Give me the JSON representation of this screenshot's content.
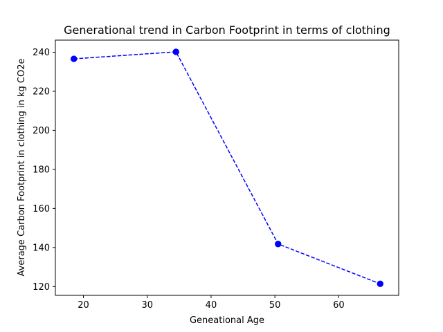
{
  "chart_data": {
    "type": "line",
    "title": "Generational trend in Carbon Footprint in terms of clothing",
    "xlabel": "Geneational Age",
    "ylabel": "Average Carbon Footprint in clothing in kg CO2e",
    "xlim": [
      15.6,
      69.4
    ],
    "ylim": [
      115.5,
      246.2
    ],
    "x_ticks": [
      20,
      30,
      40,
      50,
      60
    ],
    "y_ticks": [
      120,
      140,
      160,
      180,
      200,
      220,
      240
    ],
    "grid": false,
    "series": [
      {
        "x": [
          18.5,
          34.5,
          50.5,
          66.5
        ],
        "y": [
          236.6,
          240.2,
          141.8,
          121.4
        ],
        "color": "#0000ff",
        "line_style": "dashed",
        "marker": "circle"
      }
    ]
  }
}
